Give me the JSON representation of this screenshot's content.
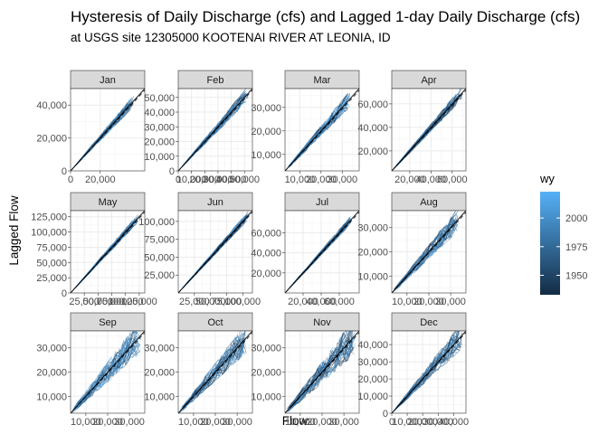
{
  "chart_data": {
    "type": "scatter",
    "title": "Hysteresis of Daily Discharge (cfs) and Lagged 1-day Daily Discharge (cfs)",
    "subtitle": "at USGS site 12305000 KOOTENAI RIVER AT LEONIA, ID",
    "xlabel": "Flow",
    "ylabel": "Lagged Flow",
    "grid": true,
    "facets": [
      {
        "label": "Jan",
        "xlim": [
          0,
          50000
        ],
        "ylim": [
          0,
          50000
        ],
        "xticks": [
          0,
          20000
        ],
        "xtick_labels": [
          "0",
          "20,000"
        ],
        "yticks": [
          0,
          20000,
          40000
        ],
        "ytick_labels": [
          "0",
          "20,000",
          "40,000"
        ]
      },
      {
        "label": "Feb",
        "xlim": [
          0,
          56000
        ],
        "ylim": [
          0,
          56000
        ],
        "xticks": [
          0,
          10000,
          20000,
          30000,
          40000,
          50000
        ],
        "xtick_labels": [
          "0",
          "10,000",
          "20,000",
          "30,000",
          "40,000",
          "50,000"
        ],
        "yticks": [
          0,
          10000,
          20000,
          30000,
          40000,
          50000
        ],
        "ytick_labels": [
          "0",
          "10,000",
          "20,000",
          "30,000",
          "40,000",
          "50,000"
        ]
      },
      {
        "label": "Mar",
        "xlim": [
          3000,
          38000
        ],
        "ylim": [
          3000,
          38000
        ],
        "xticks": [
          10000,
          20000,
          30000
        ],
        "xtick_labels": [
          "10,000",
          "20,000",
          "30,000"
        ],
        "yticks": [
          10000,
          20000,
          30000
        ],
        "ytick_labels": [
          "10,000",
          "20,000",
          "30,000"
        ]
      },
      {
        "label": "Apr",
        "xlim": [
          3000,
          73000
        ],
        "ylim": [
          3000,
          73000
        ],
        "xticks": [
          20000,
          40000,
          60000
        ],
        "xtick_labels": [
          "20,000",
          "40,000",
          "60,000"
        ],
        "yticks": [
          20000,
          40000,
          60000
        ],
        "ytick_labels": [
          "20,000",
          "40,000",
          "60,000"
        ]
      },
      {
        "label": "May",
        "xlim": [
          0,
          135000
        ],
        "ylim": [
          0,
          135000
        ],
        "xticks": [
          25000,
          50000,
          75000,
          100000,
          125000
        ],
        "xtick_labels": [
          "25,000",
          "50,000",
          "75,000",
          "100,000",
          "125,000"
        ],
        "yticks": [
          0,
          25000,
          50000,
          75000,
          100000,
          125000
        ],
        "ytick_labels": [
          "0",
          "25,000",
          "50,000",
          "75,000",
          "100,000",
          "125,000"
        ]
      },
      {
        "label": "Jun",
        "xlim": [
          0,
          115000
        ],
        "ylim": [
          0,
          115000
        ],
        "xticks": [
          25000,
          50000,
          75000,
          100000
        ],
        "xtick_labels": [
          "25,000",
          "50,000",
          "75,000",
          "100,000"
        ],
        "yticks": [
          25000,
          50000,
          75000,
          100000
        ],
        "ytick_labels": [
          "25,000",
          "50,000",
          "75,000",
          "100,000"
        ]
      },
      {
        "label": "Jul",
        "xlim": [
          0,
          82000
        ],
        "ylim": [
          0,
          82000
        ],
        "xticks": [
          20000,
          40000,
          60000
        ],
        "xtick_labels": [
          "20,000",
          "40,000",
          "60,000"
        ],
        "yticks": [
          20000,
          40000,
          60000
        ],
        "ytick_labels": [
          "20,000",
          "40,000",
          "60,000"
        ]
      },
      {
        "label": "Aug",
        "xlim": [
          3000,
          37000
        ],
        "ylim": [
          3000,
          37000
        ],
        "xticks": [
          10000,
          20000,
          30000
        ],
        "xtick_labels": [
          "10,000",
          "20,000",
          "30,000"
        ],
        "yticks": [
          10000,
          20000,
          30000
        ],
        "ytick_labels": [
          "10,000",
          "20,000",
          "30,000"
        ]
      },
      {
        "label": "Sep",
        "xlim": [
          3000,
          37000
        ],
        "ylim": [
          3000,
          37000
        ],
        "xticks": [
          10000,
          20000,
          30000
        ],
        "xtick_labels": [
          "10,000",
          "20,000",
          "30,000"
        ],
        "yticks": [
          10000,
          20000,
          30000
        ],
        "ytick_labels": [
          "10,000",
          "20,000",
          "30,000"
        ]
      },
      {
        "label": "Oct",
        "xlim": [
          3000,
          37000
        ],
        "ylim": [
          3000,
          37000
        ],
        "xticks": [
          10000,
          20000,
          30000
        ],
        "xtick_labels": [
          "10,000",
          "20,000",
          "30,000"
        ],
        "yticks": [
          10000,
          20000,
          30000
        ],
        "ytick_labels": [
          "10,000",
          "20,000",
          "30,000"
        ]
      },
      {
        "label": "Nov",
        "xlim": [
          3000,
          37000
        ],
        "ylim": [
          3000,
          37000
        ],
        "xticks": [
          10000,
          20000,
          30000
        ],
        "xtick_labels": [
          "10,000",
          "20,000",
          "30,000"
        ],
        "yticks": [
          10000,
          20000,
          30000
        ],
        "ytick_labels": [
          "10,000",
          "20,000",
          "30,000"
        ]
      },
      {
        "label": "Dec",
        "xlim": [
          0,
          48000
        ],
        "ylim": [
          0,
          48000
        ],
        "xticks": [
          0,
          10000,
          20000,
          30000,
          40000
        ],
        "xtick_labels": [
          "0",
          "10,000",
          "20,000",
          "30,000",
          "40,000"
        ],
        "yticks": [
          0,
          10000,
          20000,
          30000,
          40000
        ],
        "ytick_labels": [
          "0",
          "10,000",
          "20,000",
          "30,000",
          "40,000"
        ]
      }
    ],
    "legend": {
      "title": "wy",
      "position": "right",
      "range": [
        1933,
        2023
      ],
      "ticks": [
        1950,
        1975,
        2000
      ],
      "tick_labels": [
        "1950",
        "1975",
        "2000"
      ],
      "color_low": "#132b43",
      "color_high": "#56b1f7"
    },
    "reference_line": "1:1"
  }
}
